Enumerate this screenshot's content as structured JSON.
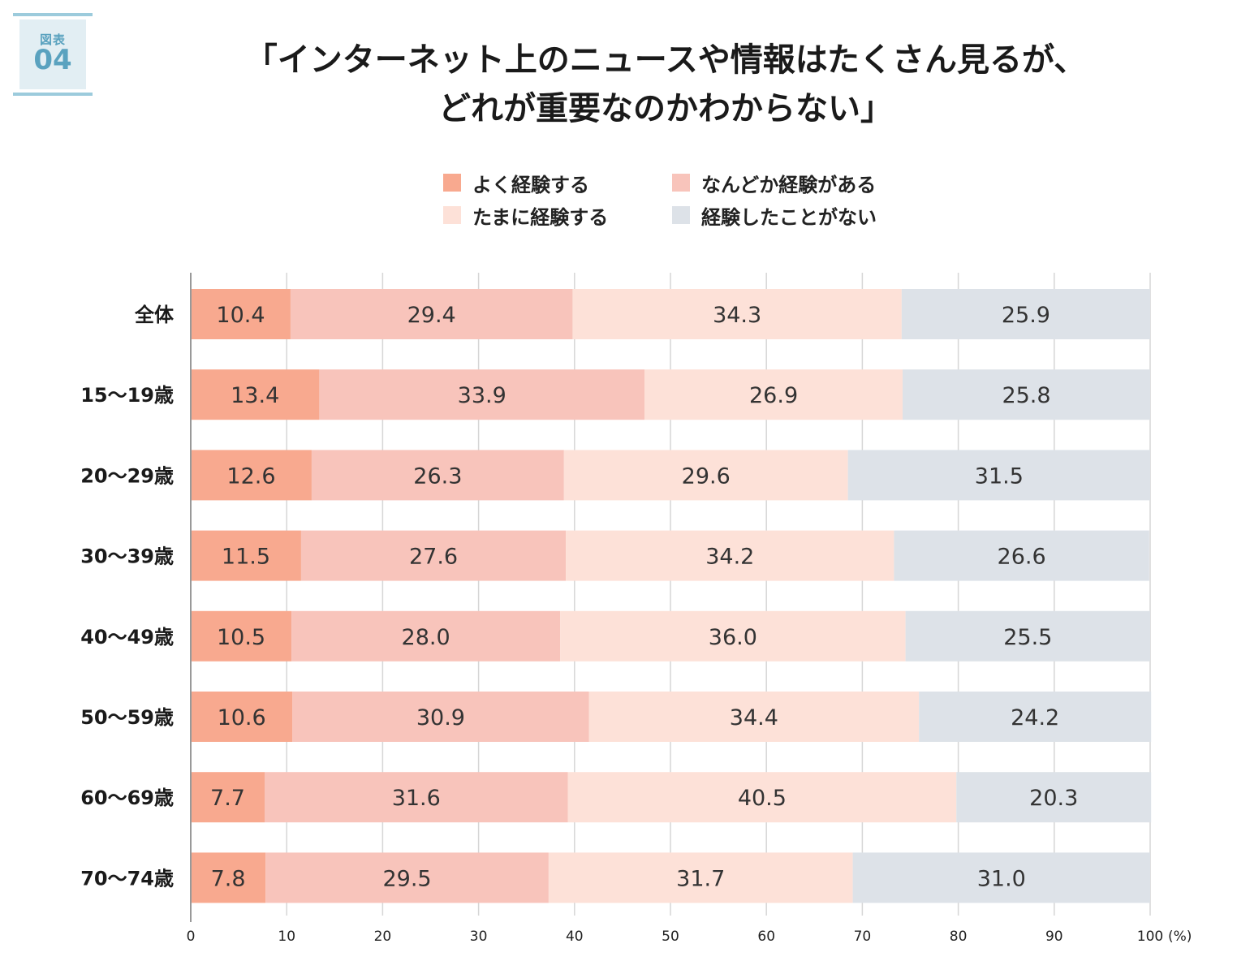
{
  "badge": {
    "label": "図表",
    "number": "04"
  },
  "title_lines": [
    "「インターネット上のニュースや情報はたくさん見るが、",
    "どれが重要なのかわからない」"
  ],
  "chart_data": {
    "type": "bar",
    "orientation": "horizontal",
    "stacked": true,
    "categories": [
      "全体",
      "15〜19歳",
      "20〜29歳",
      "30〜39歳",
      "40〜49歳",
      "50〜59歳",
      "60〜69歳",
      "70〜74歳"
    ],
    "series": [
      {
        "name": "よく経験する",
        "color": "#f8a98f",
        "values": [
          10.4,
          13.4,
          12.6,
          11.5,
          10.5,
          10.6,
          7.7,
          7.8
        ],
        "labels": [
          "10.4",
          "13.4",
          "12.6",
          "11.5",
          "10.5",
          "10.6",
          "7.7",
          "7.8"
        ]
      },
      {
        "name": "なんどか経験がある",
        "color": "#f8c4bb",
        "values": [
          29.4,
          33.9,
          26.3,
          27.6,
          28.0,
          30.9,
          31.6,
          29.5
        ],
        "labels": [
          "29.4",
          "33.9",
          "26.3",
          "27.6",
          "28.0",
          "30.9",
          "31.6",
          "29.5"
        ]
      },
      {
        "name": "たまに経験する",
        "color": "#fde1d8",
        "values": [
          34.3,
          26.9,
          29.6,
          34.2,
          36.0,
          34.4,
          40.5,
          31.7
        ],
        "labels": [
          "34.3",
          "26.9",
          "29.6",
          "34.2",
          "36.0",
          "34.4",
          "40.5",
          "31.7"
        ]
      },
      {
        "name": "経験したことがない",
        "color": "#dde2e8",
        "values": [
          25.9,
          25.8,
          31.5,
          26.6,
          25.5,
          24.2,
          20.3,
          31.0
        ],
        "labels": [
          "25.9",
          "25.8",
          "31.5",
          "26.6",
          "25.5",
          "24.2",
          "20.3",
          "31.0"
        ]
      }
    ],
    "xlim": [
      0,
      100
    ],
    "xticks": [
      "0",
      "10",
      "20",
      "30",
      "40",
      "50",
      "60",
      "70",
      "80",
      "90",
      "100"
    ],
    "unit_label": "(%)",
    "grid": true,
    "legend_position": "top-center"
  }
}
